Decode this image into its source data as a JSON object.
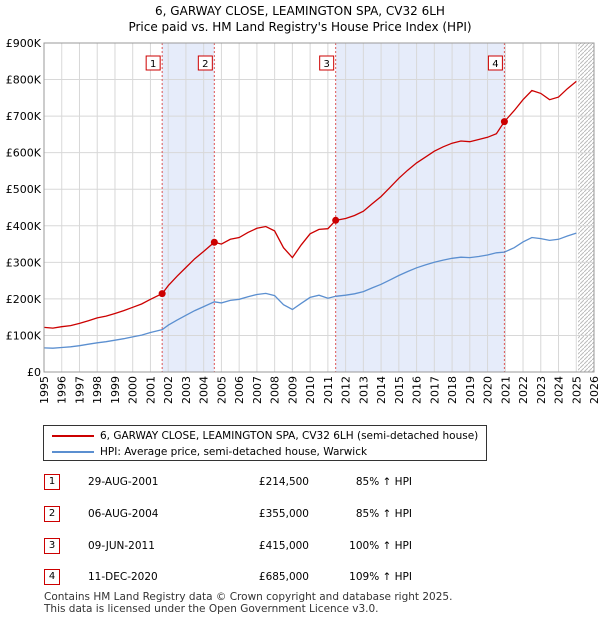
{
  "header": {
    "title_line1": "6, GARWAY CLOSE, LEAMINGTON SPA, CV32 6LH",
    "title_line2": "Price paid vs. HM Land Registry's House Price Index (HPI)"
  },
  "colors": {
    "price_line": "#cc0000",
    "hpi_line": "#5b8fd0",
    "shade": "#e6ecfa",
    "grid": "#d8d8d8",
    "hatch": "#bbbbbb",
    "vline": "#dd5555"
  },
  "chart_data": {
    "type": "line",
    "title": "Price paid vs. HM Land Registry's House Price Index (HPI)",
    "xlim": [
      1995,
      2026
    ],
    "ylim": [
      0,
      900000
    ],
    "y_ticks": [
      0,
      100000,
      200000,
      300000,
      400000,
      500000,
      600000,
      700000,
      800000,
      900000
    ],
    "y_tick_labels": [
      "£0",
      "£100K",
      "£200K",
      "£300K",
      "£400K",
      "£500K",
      "£600K",
      "£700K",
      "£800K",
      "£900K"
    ],
    "x_ticks": [
      1995,
      1996,
      1997,
      1998,
      1999,
      2000,
      2001,
      2002,
      2003,
      2004,
      2005,
      2006,
      2007,
      2008,
      2009,
      2010,
      2011,
      2012,
      2013,
      2014,
      2015,
      2016,
      2017,
      2018,
      2019,
      2020,
      2021,
      2022,
      2023,
      2024,
      2025,
      2026
    ],
    "x_tick_labels": [
      "1995",
      "1996",
      "1997",
      "1998",
      "1999",
      "2000",
      "2001",
      "2002",
      "2003",
      "2004",
      "2005",
      "2006",
      "2007",
      "2008",
      "2009",
      "2010",
      "2011",
      "2012",
      "2013",
      "2014",
      "2015",
      "2016",
      "2017",
      "2018",
      "2019",
      "2020",
      "2021",
      "2022",
      "2023",
      "2024",
      "2025",
      "2026"
    ],
    "grid": true,
    "shaded_ranges": [
      [
        2001.66,
        2004.6
      ],
      [
        2011.44,
        2020.95
      ]
    ],
    "future_hatch_from": 2025.1,
    "series": [
      {
        "name": "6, GARWAY CLOSE, LEAMINGTON SPA, CV32 6LH (semi-detached house)",
        "x": [
          1995.0,
          1995.5,
          1996.0,
          1996.5,
          1997.0,
          1997.5,
          1998.0,
          1998.5,
          1999.0,
          1999.5,
          2000.0,
          2000.5,
          2001.0,
          2001.66,
          2002.0,
          2002.5,
          2003.0,
          2003.5,
          2004.0,
          2004.6,
          2005.0,
          2005.5,
          2006.0,
          2006.5,
          2007.0,
          2007.5,
          2008.0,
          2008.5,
          2009.0,
          2009.5,
          2010.0,
          2010.5,
          2011.0,
          2011.44,
          2012.0,
          2012.5,
          2013.0,
          2013.5,
          2014.0,
          2014.5,
          2015.0,
          2015.5,
          2016.0,
          2016.5,
          2017.0,
          2017.5,
          2018.0,
          2018.5,
          2019.0,
          2019.5,
          2020.0,
          2020.5,
          2020.95,
          2021.5,
          2022.0,
          2022.5,
          2023.0,
          2023.5,
          2024.0,
          2024.5,
          2025.0
        ],
        "values": [
          122000,
          120000,
          124000,
          127000,
          133000,
          140000,
          148000,
          153000,
          160000,
          168000,
          177000,
          186000,
          199000,
          214500,
          236000,
          262000,
          286000,
          310000,
          330000,
          355000,
          350000,
          363000,
          368000,
          382000,
          393000,
          398000,
          386000,
          340000,
          313000,
          348000,
          378000,
          390000,
          392000,
          415000,
          420000,
          428000,
          440000,
          460000,
          480000,
          505000,
          530000,
          552000,
          572000,
          588000,
          604000,
          616000,
          626000,
          632000,
          630000,
          636000,
          642000,
          652000,
          685000,
          715000,
          745000,
          770000,
          762000,
          745000,
          752000,
          775000,
          795000
        ]
      },
      {
        "name": "HPI: Average price, semi-detached house, Warwick",
        "x": [
          1995.0,
          1995.5,
          1996.0,
          1996.5,
          1997.0,
          1997.5,
          1998.0,
          1998.5,
          1999.0,
          1999.5,
          2000.0,
          2000.5,
          2001.0,
          2001.66,
          2002.0,
          2002.5,
          2003.0,
          2003.5,
          2004.0,
          2004.6,
          2005.0,
          2005.5,
          2006.0,
          2006.5,
          2007.0,
          2007.5,
          2008.0,
          2008.5,
          2009.0,
          2009.5,
          2010.0,
          2010.5,
          2011.0,
          2011.44,
          2012.0,
          2012.5,
          2013.0,
          2013.5,
          2014.0,
          2014.5,
          2015.0,
          2015.5,
          2016.0,
          2016.5,
          2017.0,
          2017.5,
          2018.0,
          2018.5,
          2019.0,
          2019.5,
          2020.0,
          2020.5,
          2020.95,
          2021.5,
          2022.0,
          2022.5,
          2023.0,
          2023.5,
          2024.0,
          2024.5,
          2025.0
        ],
        "values": [
          66000,
          65000,
          67000,
          69000,
          72000,
          76000,
          80000,
          83000,
          87000,
          91000,
          96000,
          101000,
          108000,
          116000,
          128000,
          142000,
          155000,
          168000,
          179000,
          192000,
          189000,
          196000,
          199000,
          206000,
          212000,
          215000,
          209000,
          184000,
          171000,
          188000,
          204000,
          210000,
          202000,
          207000,
          210000,
          214000,
          220000,
          230000,
          240000,
          252000,
          264000,
          275000,
          285000,
          293000,
          300000,
          306000,
          311000,
          314000,
          313000,
          316000,
          320000,
          326000,
          328000,
          340000,
          356000,
          368000,
          365000,
          360000,
          363000,
          372000,
          380000
        ]
      }
    ],
    "sales": [
      {
        "n": "1",
        "x": 2001.66,
        "y": 214500
      },
      {
        "n": "2",
        "x": 2004.6,
        "y": 355000
      },
      {
        "n": "3",
        "x": 2011.44,
        "y": 415000
      },
      {
        "n": "4",
        "x": 2020.95,
        "y": 685000
      }
    ]
  },
  "legend": {
    "items": [
      {
        "label": "6, GARWAY CLOSE, LEAMINGTON SPA, CV32 6LH (semi-detached house)"
      },
      {
        "label": "HPI: Average price, semi-detached house, Warwick"
      }
    ]
  },
  "sales_table": [
    {
      "n": "1",
      "date": "29-AUG-2001",
      "price": "£214,500",
      "hpi": "85% ↑ HPI"
    },
    {
      "n": "2",
      "date": "06-AUG-2004",
      "price": "£355,000",
      "hpi": "85% ↑ HPI"
    },
    {
      "n": "3",
      "date": "09-JUN-2011",
      "price": "£415,000",
      "hpi": "100% ↑ HPI"
    },
    {
      "n": "4",
      "date": "11-DEC-2020",
      "price": "£685,000",
      "hpi": "109% ↑ HPI"
    }
  ],
  "footer": {
    "line1": "Contains HM Land Registry data © Crown copyright and database right 2025.",
    "line2": "This data is licensed under the Open Government Licence v3.0."
  }
}
